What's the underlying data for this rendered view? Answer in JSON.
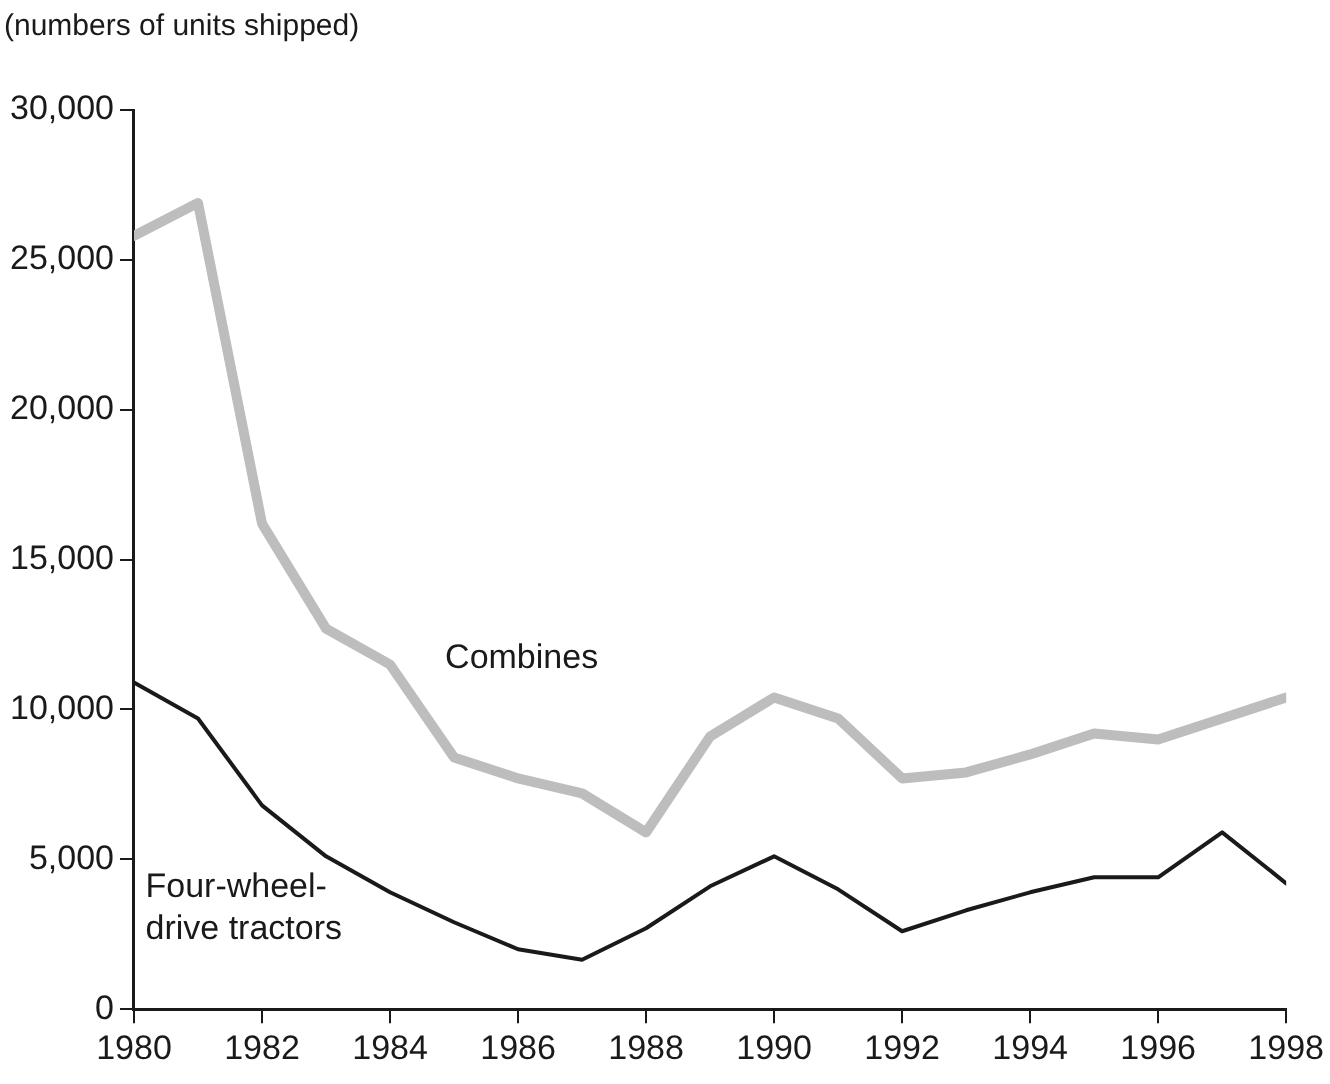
{
  "chart_data": {
    "type": "line",
    "ylabel": "(numbers of units shipped)",
    "x": [
      1980,
      1981,
      1982,
      1983,
      1984,
      1985,
      1986,
      1987,
      1988,
      1989,
      1990,
      1991,
      1992,
      1993,
      1994,
      1995,
      1996,
      1997,
      1998
    ],
    "series": [
      {
        "name": "Combines",
        "color": "#bdbdbd",
        "values": [
          25800,
          26900,
          16200,
          12700,
          11500,
          8400,
          7700,
          7200,
          5900,
          9100,
          10400,
          9700,
          7700,
          7900,
          8500,
          9200,
          9000,
          9700,
          10400
        ]
      },
      {
        "name": "Four-wheel-drive tractors",
        "color": "#1a1a1a",
        "values": [
          10900,
          9700,
          6800,
          5100,
          3900,
          2900,
          2000,
          1650,
          2700,
          4100,
          5100,
          4000,
          2600,
          3300,
          3900,
          4400,
          4400,
          5900,
          4200
        ]
      }
    ],
    "xlim": [
      1980,
      1998
    ],
    "xticks": [
      1980,
      1982,
      1984,
      1986,
      1988,
      1990,
      1992,
      1994,
      1996,
      1998
    ],
    "ylim": [
      0,
      30000
    ],
    "yticks": [
      0,
      {
        "value": 5000,
        "label": "5,000"
      },
      {
        "value": 10000,
        "label": "10,000"
      },
      {
        "value": 15000,
        "label": "15,000"
      },
      {
        "value": 20000,
        "label": "20,000"
      },
      {
        "value": 25000,
        "label": "25,000"
      },
      {
        "value": 30000,
        "label": "30,000"
      }
    ],
    "grid": false,
    "legend": false,
    "marker": "none",
    "line_style": "solid"
  }
}
